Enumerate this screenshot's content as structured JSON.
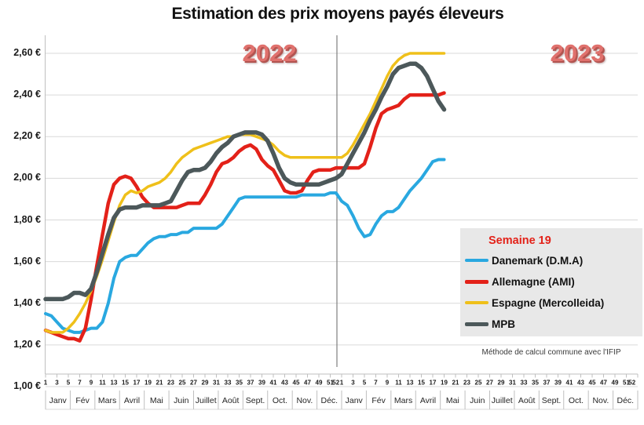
{
  "title": "Estimation des prix moyens payés éleveurs",
  "year_labels": [
    "2022",
    "2023"
  ],
  "footnote": "Méthode de calcul commune avec l'IFIP",
  "legend": {
    "title": "Semaine 19",
    "items": [
      {
        "label": "Danemark (D.M.A)",
        "color": "#29a8e0",
        "swatch_height": 4
      },
      {
        "label": "Allemagne (AMI)",
        "color": "#e32119",
        "swatch_height": 5
      },
      {
        "label": "Espagne (Mercolleida)",
        "color": "#efc01a",
        "swatch_height": 4
      },
      {
        "label": "MPB",
        "color": "#4c585a",
        "swatch_height": 5
      }
    ]
  },
  "chart_data": {
    "type": "line",
    "title": "Estimation des prix moyens payés éleveurs",
    "x_axis": {
      "unit": "semaine",
      "years": [
        "2022",
        "2023"
      ],
      "weeks_per_year": 52,
      "week_tick_numbers": [
        1,
        3,
        5,
        7,
        9,
        11,
        13,
        15,
        17,
        19,
        21,
        23,
        25,
        27,
        29,
        31,
        33,
        35,
        37,
        39,
        41,
        43,
        45,
        47,
        49,
        51,
        52
      ],
      "month_labels": [
        "Janv",
        "Fév",
        "Mars",
        "Avril",
        "Mai",
        "Juin",
        "Juillet",
        "Août",
        "Sept.",
        "Oct.",
        "Nov.",
        "Déc."
      ],
      "last_data_week": "2023 semaine 19"
    },
    "y_axis": {
      "tick_labels": [
        "2,60 €",
        "2,40 €",
        "2,20 €",
        "2,00 €",
        "1,80 €",
        "1,60 €",
        "1,40 €",
        "1,20 €",
        "1,00 €"
      ],
      "min": 1.0,
      "max": 2.6,
      "step": 0.2,
      "currency": "EUR",
      "grid": true
    },
    "legend_position": "right-middle",
    "series": [
      {
        "name": "Danemark (D.M.A)",
        "color": "#29a8e0",
        "line_width": 4,
        "values": [
          1.35,
          1.34,
          1.31,
          1.28,
          1.27,
          1.26,
          1.26,
          1.27,
          1.28,
          1.28,
          1.31,
          1.4,
          1.52,
          1.6,
          1.62,
          1.63,
          1.63,
          1.66,
          1.69,
          1.71,
          1.72,
          1.72,
          1.73,
          1.73,
          1.74,
          1.74,
          1.76,
          1.76,
          1.76,
          1.76,
          1.76,
          1.78,
          1.82,
          1.86,
          1.9,
          1.91,
          1.91,
          1.91,
          1.91,
          1.91,
          1.91,
          1.91,
          1.91,
          1.91,
          1.91,
          1.92,
          1.92,
          1.92,
          1.92,
          1.92,
          1.93,
          1.93,
          1.89,
          1.87,
          1.82,
          1.76,
          1.72,
          1.73,
          1.78,
          1.82,
          1.84,
          1.84,
          1.86,
          1.9,
          1.94,
          1.97,
          2.0,
          2.04,
          2.08,
          2.09,
          2.09
        ]
      },
      {
        "name": "Allemagne (AMI)",
        "color": "#e32119",
        "line_width": 4.5,
        "values": [
          1.27,
          1.26,
          1.25,
          1.24,
          1.23,
          1.23,
          1.22,
          1.28,
          1.42,
          1.58,
          1.73,
          1.88,
          1.97,
          2.0,
          2.01,
          2.0,
          1.96,
          1.91,
          1.88,
          1.86,
          1.86,
          1.86,
          1.86,
          1.86,
          1.87,
          1.88,
          1.88,
          1.88,
          1.92,
          1.97,
          2.03,
          2.07,
          2.08,
          2.1,
          2.13,
          2.15,
          2.16,
          2.14,
          2.09,
          2.06,
          2.04,
          1.99,
          1.94,
          1.93,
          1.93,
          1.94,
          1.99,
          2.03,
          2.04,
          2.04,
          2.04,
          2.05,
          2.05,
          2.05,
          2.05,
          2.05,
          2.07,
          2.15,
          2.24,
          2.31,
          2.33,
          2.34,
          2.35,
          2.38,
          2.4,
          2.4,
          2.4,
          2.4,
          2.4,
          2.4,
          2.41
        ]
      },
      {
        "name": "Espagne (Mercolleida)",
        "color": "#efc01a",
        "line_width": 3.5,
        "values": [
          1.27,
          1.26,
          1.26,
          1.26,
          1.28,
          1.31,
          1.35,
          1.4,
          1.46,
          1.53,
          1.61,
          1.7,
          1.79,
          1.87,
          1.92,
          1.94,
          1.93,
          1.94,
          1.96,
          1.97,
          1.98,
          2.0,
          2.03,
          2.07,
          2.1,
          2.12,
          2.14,
          2.15,
          2.16,
          2.17,
          2.18,
          2.19,
          2.2,
          2.2,
          2.21,
          2.21,
          2.21,
          2.2,
          2.19,
          2.18,
          2.16,
          2.13,
          2.11,
          2.1,
          2.1,
          2.1,
          2.1,
          2.1,
          2.1,
          2.1,
          2.1,
          2.1,
          2.1,
          2.12,
          2.16,
          2.21,
          2.26,
          2.31,
          2.37,
          2.43,
          2.49,
          2.54,
          2.57,
          2.59,
          2.6,
          2.6,
          2.6,
          2.6,
          2.6,
          2.6,
          2.6
        ]
      },
      {
        "name": "MPB",
        "color": "#4c585a",
        "line_width": 5.5,
        "values": [
          1.42,
          1.42,
          1.42,
          1.42,
          1.43,
          1.45,
          1.45,
          1.44,
          1.47,
          1.55,
          1.64,
          1.73,
          1.81,
          1.85,
          1.86,
          1.86,
          1.86,
          1.87,
          1.87,
          1.87,
          1.87,
          1.88,
          1.89,
          1.94,
          1.99,
          2.03,
          2.04,
          2.04,
          2.05,
          2.08,
          2.12,
          2.15,
          2.17,
          2.2,
          2.21,
          2.22,
          2.22,
          2.22,
          2.21,
          2.18,
          2.12,
          2.05,
          2.0,
          1.98,
          1.97,
          1.97,
          1.97,
          1.97,
          1.97,
          1.98,
          1.99,
          2.0,
          2.02,
          2.07,
          2.12,
          2.17,
          2.22,
          2.28,
          2.33,
          2.39,
          2.44,
          2.5,
          2.53,
          2.54,
          2.55,
          2.55,
          2.53,
          2.49,
          2.43,
          2.37,
          2.33
        ]
      }
    ],
    "annotations": [
      "2022",
      "2023"
    ],
    "colors": {
      "grid": "#d9d9d9",
      "axis": "#bfbfbf",
      "divider": "#7f7f7f",
      "year_label": "#e0716d",
      "legend_bg": "#e8e8e8"
    }
  }
}
